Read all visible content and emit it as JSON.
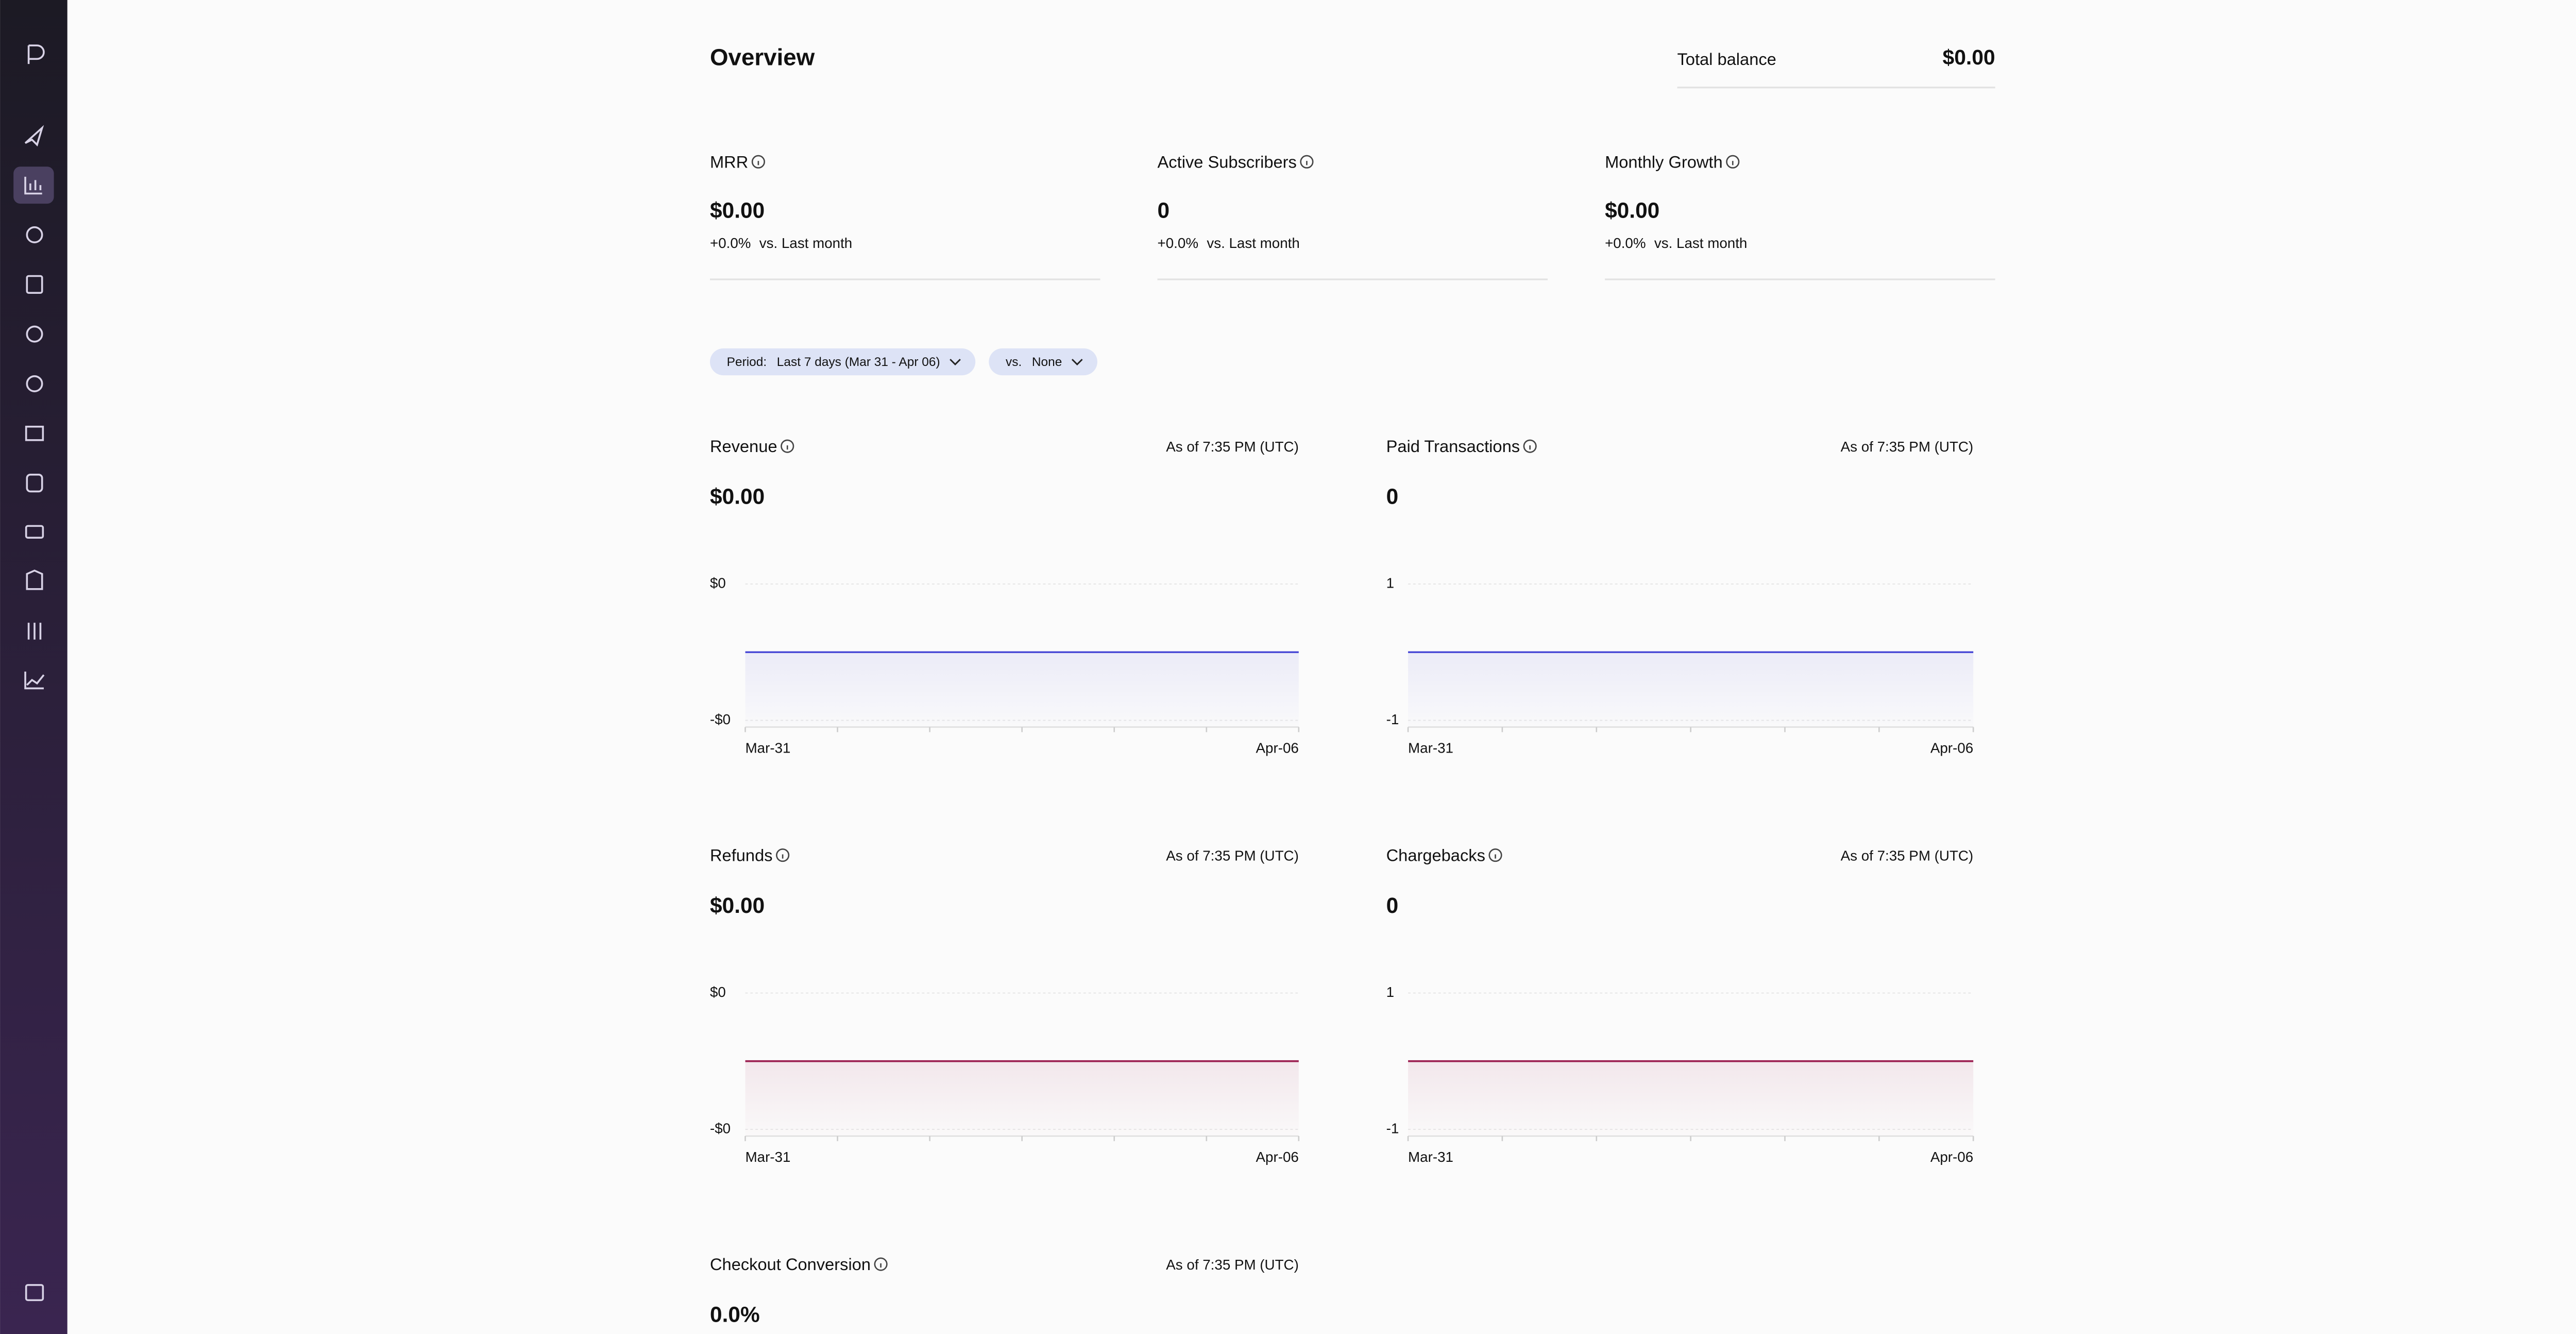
{
  "header": {
    "title": "Overview",
    "balance_label": "Total balance",
    "balance_value": "$0.00"
  },
  "metrics": [
    {
      "label": "MRR",
      "value": "$0.00",
      "change": "+0.0%",
      "comparison": "vs. Last month"
    },
    {
      "label": "Active Subscribers",
      "value": "0",
      "change": "+0.0%",
      "comparison": "vs. Last month"
    },
    {
      "label": "Monthly Growth",
      "value": "$0.00",
      "change": "+0.0%",
      "comparison": "vs. Last month"
    }
  ],
  "filters": [
    {
      "label": "Period:",
      "value": "Last 7 days (Mar 31 - Apr 06)"
    },
    {
      "label": "vs.",
      "value": "None"
    }
  ],
  "charts": [
    {
      "type": "line",
      "title": "Revenue",
      "total": "$0.00",
      "as_of": "As of 7:35 PM (UTC)",
      "color": "#4b4bd6",
      "categories": [
        "Mar-31",
        null,
        null,
        null,
        null,
        null,
        "Apr-06"
      ],
      "values": [
        0,
        0,
        0,
        0,
        0,
        0,
        0
      ],
      "ylim": [
        -1,
        1
      ],
      "yticks": [
        {
          "value": 1,
          "label": "$0"
        },
        {
          "value": -1,
          "label": "-$0"
        }
      ],
      "grid": true
    },
    {
      "type": "line",
      "title": "Paid Transactions",
      "total": "0",
      "as_of": "As of 7:35 PM (UTC)",
      "color": "#4b4bd6",
      "categories": [
        "Mar-31",
        null,
        null,
        null,
        null,
        null,
        "Apr-06"
      ],
      "values": [
        0,
        0,
        0,
        0,
        0,
        0,
        0
      ],
      "ylim": [
        -1,
        1
      ],
      "yticks": [
        1,
        -1
      ],
      "grid": true
    },
    {
      "type": "line",
      "title": "Refunds",
      "total": "$0.00",
      "as_of": "As of 7:35 PM (UTC)",
      "color": "#9b1f50",
      "categories": [
        "Mar-31",
        null,
        null,
        null,
        null,
        null,
        "Apr-06"
      ],
      "values": [
        0,
        0,
        0,
        0,
        0,
        0,
        0
      ],
      "ylim": [
        -1,
        1
      ],
      "yticks": [
        {
          "value": 1,
          "label": "$0"
        },
        {
          "value": -1,
          "label": "-$0"
        }
      ],
      "grid": true
    },
    {
      "type": "line",
      "title": "Chargebacks",
      "total": "0",
      "as_of": "As of 7:35 PM (UTC)",
      "color": "#9b1f50",
      "categories": [
        "Mar-31",
        null,
        null,
        null,
        null,
        null,
        "Apr-06"
      ],
      "values": [
        0,
        0,
        0,
        0,
        0,
        0,
        0
      ],
      "ylim": [
        -1,
        1
      ],
      "yticks": [
        1,
        -1
      ],
      "grid": true
    }
  ],
  "checkout": {
    "title": "Checkout Conversion",
    "total": "0.0%",
    "as_of": "As of 7:35 PM (UTC)"
  }
}
